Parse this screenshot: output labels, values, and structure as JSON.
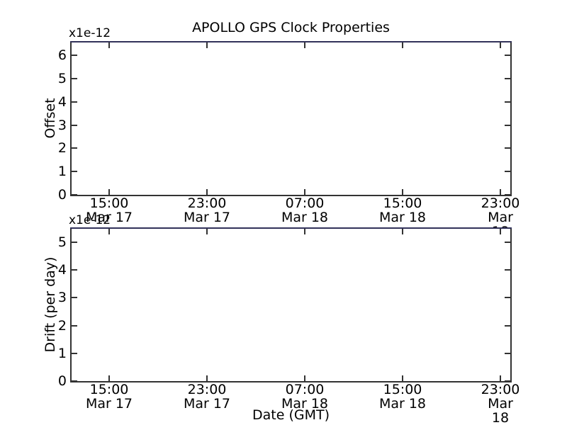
{
  "figure": {
    "title": "APOLLO GPS Clock Properties",
    "xlabel": "Date (GMT)"
  },
  "colors": {
    "background": "#ffffff",
    "spine": "#333333",
    "text": "#000000",
    "top_edge_line": "#32325a"
  },
  "chart_data": [
    {
      "type": "line",
      "subplot": "top",
      "ylabel": "Offset",
      "y_offset_text": "x1e-12",
      "y_unit_scale": "1e-12",
      "yticks": [
        0,
        1,
        2,
        3,
        4,
        5,
        6
      ],
      "ylim": [
        0,
        6.6
      ],
      "grid": false,
      "legend": false,
      "xticks": [
        {
          "time": "15:00",
          "date": "Mar 17"
        },
        {
          "time": "23:00",
          "date": "Mar 17"
        },
        {
          "time": "07:00",
          "date": "Mar 18"
        },
        {
          "time": "15:00",
          "date": "Mar 18"
        },
        {
          "time": "23:00",
          "date": "Mar 18"
        }
      ],
      "series": []
    },
    {
      "type": "line",
      "subplot": "bottom",
      "ylabel": "Drift (per day)",
      "y_offset_text": "x1e-12",
      "y_unit_scale": "1e-12",
      "yticks": [
        0,
        1,
        2,
        3,
        4,
        5
      ],
      "ylim": [
        0,
        5.5
      ],
      "grid": false,
      "legend": false,
      "xticks": [
        {
          "time": "15:00",
          "date": "Mar 17"
        },
        {
          "time": "23:00",
          "date": "Mar 17"
        },
        {
          "time": "07:00",
          "date": "Mar 18"
        },
        {
          "time": "15:00",
          "date": "Mar 18"
        },
        {
          "time": "23:00",
          "date": "Mar 18"
        }
      ],
      "series": []
    }
  ]
}
